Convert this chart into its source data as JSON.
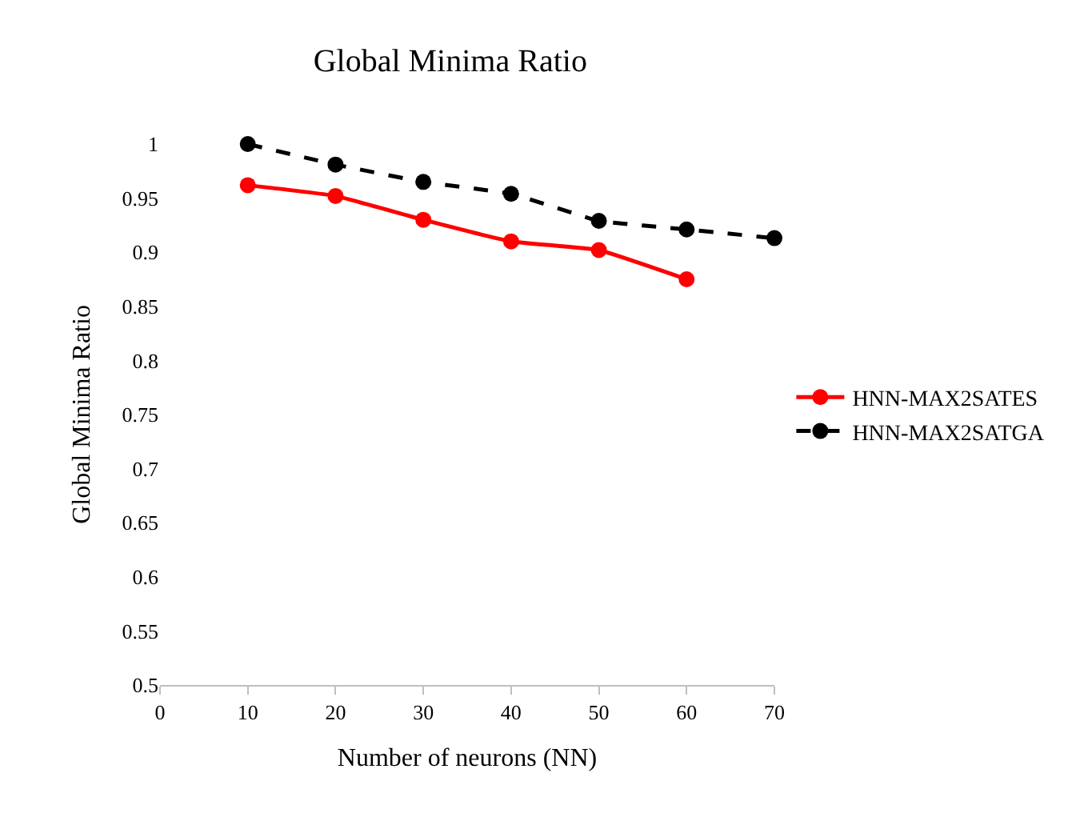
{
  "chart_data": {
    "type": "line",
    "title": "Global Minima Ratio",
    "xlabel": "Number of neurons (NN)",
    "ylabel": "Global Minima Ratio",
    "x": [
      10,
      20,
      30,
      40,
      50,
      60,
      70
    ],
    "series": [
      {
        "name": "HNN-MAX2SATES",
        "color": "#ff0000",
        "line_style": "solid",
        "values": [
          0.962,
          0.952,
          0.93,
          0.91,
          0.902,
          0.875,
          null
        ]
      },
      {
        "name": "HNN-MAX2SATGA",
        "color": "#000000",
        "line_style": "dashed",
        "values": [
          1.0,
          0.981,
          0.965,
          0.954,
          0.929,
          0.921,
          0.913
        ]
      }
    ],
    "xlim": [
      0,
      70
    ],
    "xticks": [
      0,
      10,
      20,
      30,
      40,
      50,
      60,
      70
    ],
    "ylim": [
      0.5,
      1
    ],
    "yticks": [
      0.5,
      0.55,
      0.6,
      0.65,
      0.7,
      0.75,
      0.8,
      0.85,
      0.9,
      0.95,
      1
    ],
    "legend": "right",
    "marker": "circle"
  }
}
